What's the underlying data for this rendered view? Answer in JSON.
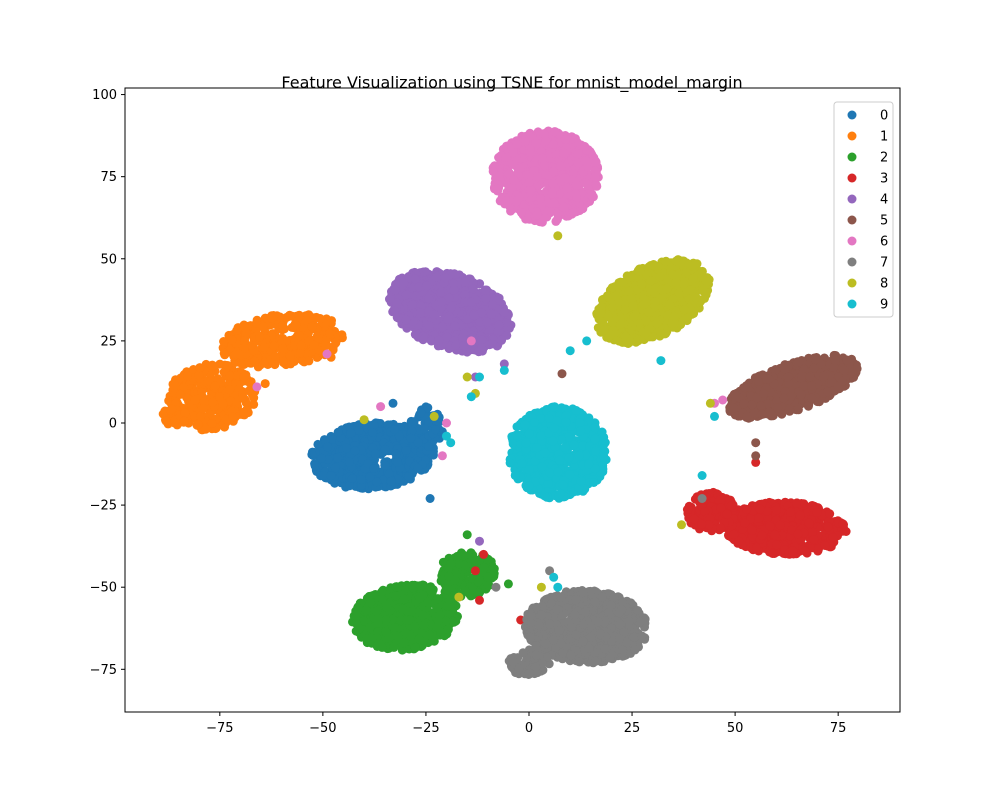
{
  "chart_data": {
    "type": "scatter",
    "title": "Feature Visualization using TSNE for mnist_model_margin",
    "xlabel": "",
    "ylabel": "",
    "xlim": [
      -98,
      90
    ],
    "ylim": [
      -88,
      102
    ],
    "xticks": [
      -75,
      -50,
      -25,
      0,
      25,
      50,
      75
    ],
    "yticks": [
      -75,
      -50,
      -25,
      0,
      25,
      50,
      75,
      100
    ],
    "xtick_labels": [
      "−75",
      "−50",
      "−25",
      "0",
      "25",
      "50",
      "75"
    ],
    "ytick_labels": [
      "−75",
      "−50",
      "−25",
      "0",
      "25",
      "50",
      "75",
      "100"
    ],
    "grid": false,
    "legend_position": "top-right",
    "series": [
      {
        "name": "0",
        "color": "#1f77b4",
        "clusters": [
          {
            "shape": "ellipse",
            "center": [
              -38,
              -10
            ],
            "rx": 15,
            "ry": 10,
            "rotation": 8,
            "count": 700
          },
          {
            "shape": "ellipse",
            "center": [
              -25,
              -2
            ],
            "rx": 4,
            "ry": 7,
            "rotation": 0,
            "count": 70
          }
        ],
        "points": [
          [
            -33,
            6
          ],
          [
            -24,
            -23
          ]
        ]
      },
      {
        "name": "1",
        "color": "#ff7f0e",
        "clusters": [
          {
            "shape": "ellipse",
            "center": [
              -60,
              25
            ],
            "rx": 15,
            "ry": 8,
            "rotation": 10,
            "count": 380
          },
          {
            "shape": "ellipse",
            "center": [
              -77,
              8
            ],
            "rx": 11,
            "ry": 10,
            "rotation": 30,
            "count": 300
          },
          {
            "shape": "ellipse",
            "center": [
              -86,
              2
            ],
            "rx": 3,
            "ry": 3,
            "rotation": 0,
            "count": 30
          }
        ],
        "points": [
          [
            -48,
            20
          ],
          [
            -64,
            12
          ]
        ]
      },
      {
        "name": "2",
        "color": "#2ca02c",
        "clusters": [
          {
            "shape": "ellipse",
            "center": [
              -30,
              -59
            ],
            "rx": 13,
            "ry": 10,
            "rotation": 15,
            "count": 620
          },
          {
            "shape": "ellipse",
            "center": [
              -15,
              -46
            ],
            "rx": 7,
            "ry": 7,
            "rotation": 0,
            "count": 170
          }
        ],
        "points": [
          [
            -15,
            -34
          ],
          [
            -5,
            -49
          ],
          [
            -10,
            -47
          ]
        ]
      },
      {
        "name": "3",
        "color": "#d62728",
        "clusters": [
          {
            "shape": "ellipse",
            "center": [
              62,
              -32
            ],
            "rx": 15,
            "ry": 8,
            "rotation": -3,
            "count": 550
          },
          {
            "shape": "ellipse",
            "center": [
              44,
              -27
            ],
            "rx": 6,
            "ry": 6,
            "rotation": 0,
            "count": 140
          }
        ],
        "points": [
          [
            55,
            -12
          ],
          [
            -12,
            -54
          ],
          [
            -2,
            -60
          ],
          [
            -11,
            -40
          ],
          [
            -13,
            -45
          ]
        ]
      },
      {
        "name": "4",
        "color": "#9467bd",
        "clusters": [
          {
            "shape": "ellipse",
            "center": [
              -19,
              34
            ],
            "rx": 16,
            "ry": 11,
            "rotation": -30,
            "count": 800
          }
        ],
        "points": [
          [
            -13,
            14
          ],
          [
            -6,
            18
          ],
          [
            -12,
            -36
          ]
        ]
      },
      {
        "name": "5",
        "color": "#8c564b",
        "clusters": [
          {
            "shape": "ellipse",
            "center": [
              64,
              11
            ],
            "rx": 17,
            "ry": 7,
            "rotation": 25,
            "count": 650
          }
        ],
        "points": [
          [
            55,
            -6
          ],
          [
            55,
            -10
          ],
          [
            8,
            15
          ]
        ]
      },
      {
        "name": "6",
        "color": "#e377c2",
        "clusters": [
          {
            "shape": "ellipse",
            "center": [
              4,
              75
            ],
            "rx": 13,
            "ry": 14,
            "rotation": 0,
            "count": 850
          }
        ],
        "points": [
          [
            -14,
            25
          ],
          [
            -49,
            21
          ],
          [
            -66,
            11
          ],
          [
            -36,
            5
          ],
          [
            -20,
            0
          ],
          [
            45,
            6
          ],
          [
            47,
            7
          ],
          [
            -21,
            -10
          ]
        ]
      },
      {
        "name": "7",
        "color": "#7f7f7f",
        "clusters": [
          {
            "shape": "ellipse",
            "center": [
              14,
              -62
            ],
            "rx": 15,
            "ry": 11,
            "rotation": -5,
            "count": 780
          },
          {
            "shape": "ellipse",
            "center": [
              0,
              -73
            ],
            "rx": 5,
            "ry": 4,
            "rotation": 0,
            "count": 60
          }
        ],
        "points": [
          [
            -8,
            -50
          ],
          [
            42,
            -23
          ],
          [
            5,
            -45
          ]
        ]
      },
      {
        "name": "8",
        "color": "#bcbd22",
        "clusters": [
          {
            "shape": "ellipse",
            "center": [
              30,
              37
            ],
            "rx": 16,
            "ry": 10,
            "rotation": 40,
            "count": 780
          }
        ],
        "points": [
          [
            7,
            57
          ],
          [
            -40,
            1
          ],
          [
            -23,
            2
          ],
          [
            -13,
            9
          ],
          [
            -15,
            14
          ],
          [
            44,
            6
          ],
          [
            -17,
            -53
          ],
          [
            3,
            -50
          ],
          [
            37,
            -31
          ]
        ]
      },
      {
        "name": "9",
        "color": "#17becf",
        "clusters": [
          {
            "shape": "ellipse",
            "center": [
              7,
              -9
            ],
            "rx": 12,
            "ry": 14,
            "rotation": 0,
            "count": 800
          }
        ],
        "points": [
          [
            10,
            22
          ],
          [
            14,
            25
          ],
          [
            32,
            19
          ],
          [
            45,
            2
          ],
          [
            42,
            -16
          ],
          [
            -6,
            16
          ],
          [
            -12,
            14
          ],
          [
            -14,
            8
          ],
          [
            -19,
            -6
          ],
          [
            6,
            -47
          ],
          [
            7,
            -50
          ],
          [
            -20,
            -4
          ]
        ]
      }
    ]
  }
}
